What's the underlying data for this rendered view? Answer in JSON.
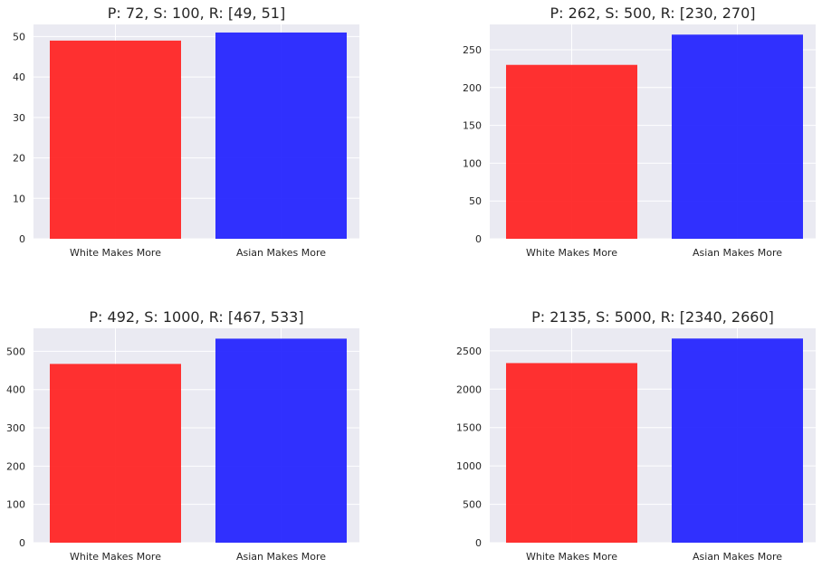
{
  "chart_data": [
    {
      "type": "bar",
      "title": "P: 72, S: 100, R: [49, 51]",
      "categories": [
        "White Makes More",
        "Asian Makes More"
      ],
      "values": [
        49,
        51
      ],
      "colors": [
        "#ff2020",
        "#2020ff"
      ],
      "ylim": [
        0,
        53
      ],
      "yticks": [
        0,
        10,
        20,
        30,
        40,
        50
      ],
      "ytick_labels": [
        "0",
        "10",
        "20",
        "30",
        "40",
        "50"
      ],
      "xlabel": "",
      "ylabel": "",
      "grid": true
    },
    {
      "type": "bar",
      "title": "P: 262, S: 500, R: [230, 270]",
      "categories": [
        "White Makes More",
        "Asian Makes More"
      ],
      "values": [
        230,
        270
      ],
      "colors": [
        "#ff2020",
        "#2020ff"
      ],
      "ylim": [
        0,
        283.5
      ],
      "yticks": [
        0,
        50,
        100,
        150,
        200,
        250
      ],
      "ytick_labels": [
        "0",
        "50",
        "100",
        "150",
        "200",
        "250"
      ],
      "xlabel": "",
      "ylabel": "",
      "grid": true
    },
    {
      "type": "bar",
      "title": "P: 492, S: 1000, R: [467, 533]",
      "categories": [
        "White Makes More",
        "Asian Makes More"
      ],
      "values": [
        467,
        533
      ],
      "colors": [
        "#ff2020",
        "#2020ff"
      ],
      "ylim": [
        0,
        560
      ],
      "yticks": [
        0,
        100,
        200,
        300,
        400,
        500
      ],
      "ytick_labels": [
        "0",
        "100",
        "200",
        "300",
        "400",
        "500"
      ],
      "xlabel": "",
      "ylabel": "",
      "grid": true
    },
    {
      "type": "bar",
      "title": "P: 2135, S: 5000, R: [2340, 2660]",
      "categories": [
        "White Makes More",
        "Asian Makes More"
      ],
      "values": [
        2340,
        2660
      ],
      "colors": [
        "#ff2020",
        "#2020ff"
      ],
      "ylim": [
        0,
        2793
      ],
      "yticks": [
        0,
        500,
        1000,
        1500,
        2000,
        2500
      ],
      "ytick_labels": [
        "0",
        "500",
        "1000",
        "1500",
        "2000",
        "2500"
      ],
      "xlabel": "",
      "ylabel": "",
      "grid": true
    }
  ]
}
